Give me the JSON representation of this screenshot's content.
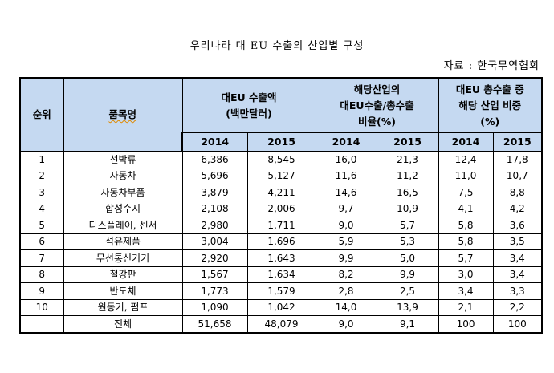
{
  "title": "우리나라 대 EU 수출의 산업별 구성",
  "source": "자료 : 한국무역협회",
  "colors": {
    "header_bg": "#C5D9F1",
    "border": "#000000"
  },
  "table": {
    "headers": {
      "rank": "순위",
      "item": "품목명",
      "export_amount": {
        "line1": "대EU  수출액",
        "line2": "(백만달러)"
      },
      "ratio": {
        "line1": "해당산업의",
        "line2": "대EU수출/총수출",
        "line3": "비율(%)"
      },
      "share": {
        "line1": "대EU 총수출 중",
        "line2": "해당 산업 비중",
        "line3": "(%)"
      },
      "years": [
        "2014",
        "2015",
        "2014",
        "2015",
        "2014",
        "2015"
      ]
    },
    "rows": [
      {
        "rank": "1",
        "item": "선박류",
        "exp2014": "6,386",
        "exp2015": "8,545",
        "ratio2014": "16,0",
        "ratio2015": "21,3",
        "share2014": "12,4",
        "share2015": "17,8"
      },
      {
        "rank": "2",
        "item": "자동차",
        "exp2014": "5,696",
        "exp2015": "5,127",
        "ratio2014": "11,6",
        "ratio2015": "11,2",
        "share2014": "11,0",
        "share2015": "10,7"
      },
      {
        "rank": "3",
        "item": "자동차부품",
        "exp2014": "3,879",
        "exp2015": "4,211",
        "ratio2014": "14,6",
        "ratio2015": "16,5",
        "share2014": "7,5",
        "share2015": "8,8"
      },
      {
        "rank": "4",
        "item": "합성수지",
        "exp2014": "2,108",
        "exp2015": "2,006",
        "ratio2014": "9,7",
        "ratio2015": "10,9",
        "share2014": "4,1",
        "share2015": "4,2"
      },
      {
        "rank": "5",
        "item": "디스플레이, 센서",
        "exp2014": "2,980",
        "exp2015": "1,711",
        "ratio2014": "9,0",
        "ratio2015": "5,7",
        "share2014": "5,8",
        "share2015": "3,6"
      },
      {
        "rank": "6",
        "item": "석유제품",
        "exp2014": "3,004",
        "exp2015": "1,696",
        "ratio2014": "5,9",
        "ratio2015": "5,3",
        "share2014": "5,8",
        "share2015": "3,5"
      },
      {
        "rank": "7",
        "item": "무선통신기기",
        "exp2014": "2,920",
        "exp2015": "1,643",
        "ratio2014": "9,9",
        "ratio2015": "5,0",
        "share2014": "5,7",
        "share2015": "3,4"
      },
      {
        "rank": "8",
        "item": "철강판",
        "exp2014": "1,567",
        "exp2015": "1,634",
        "ratio2014": "8,2",
        "ratio2015": "9,9",
        "share2014": "3,0",
        "share2015": "3,4"
      },
      {
        "rank": "9",
        "item": "반도체",
        "exp2014": "1,773",
        "exp2015": "1,579",
        "ratio2014": "2,8",
        "ratio2015": "2,5",
        "share2014": "3,4",
        "share2015": "3,3"
      },
      {
        "rank": "10",
        "item": "원동기, 펌프",
        "exp2014": "1,090",
        "exp2015": "1,042",
        "ratio2014": "14,0",
        "ratio2015": "13,9",
        "share2014": "2,1",
        "share2015": "2,2"
      },
      {
        "rank": "",
        "item": "전체",
        "exp2014": "51,658",
        "exp2015": "48,079",
        "ratio2014": "9,0",
        "ratio2015": "9,1",
        "share2014": "100",
        "share2015": "100"
      }
    ]
  }
}
